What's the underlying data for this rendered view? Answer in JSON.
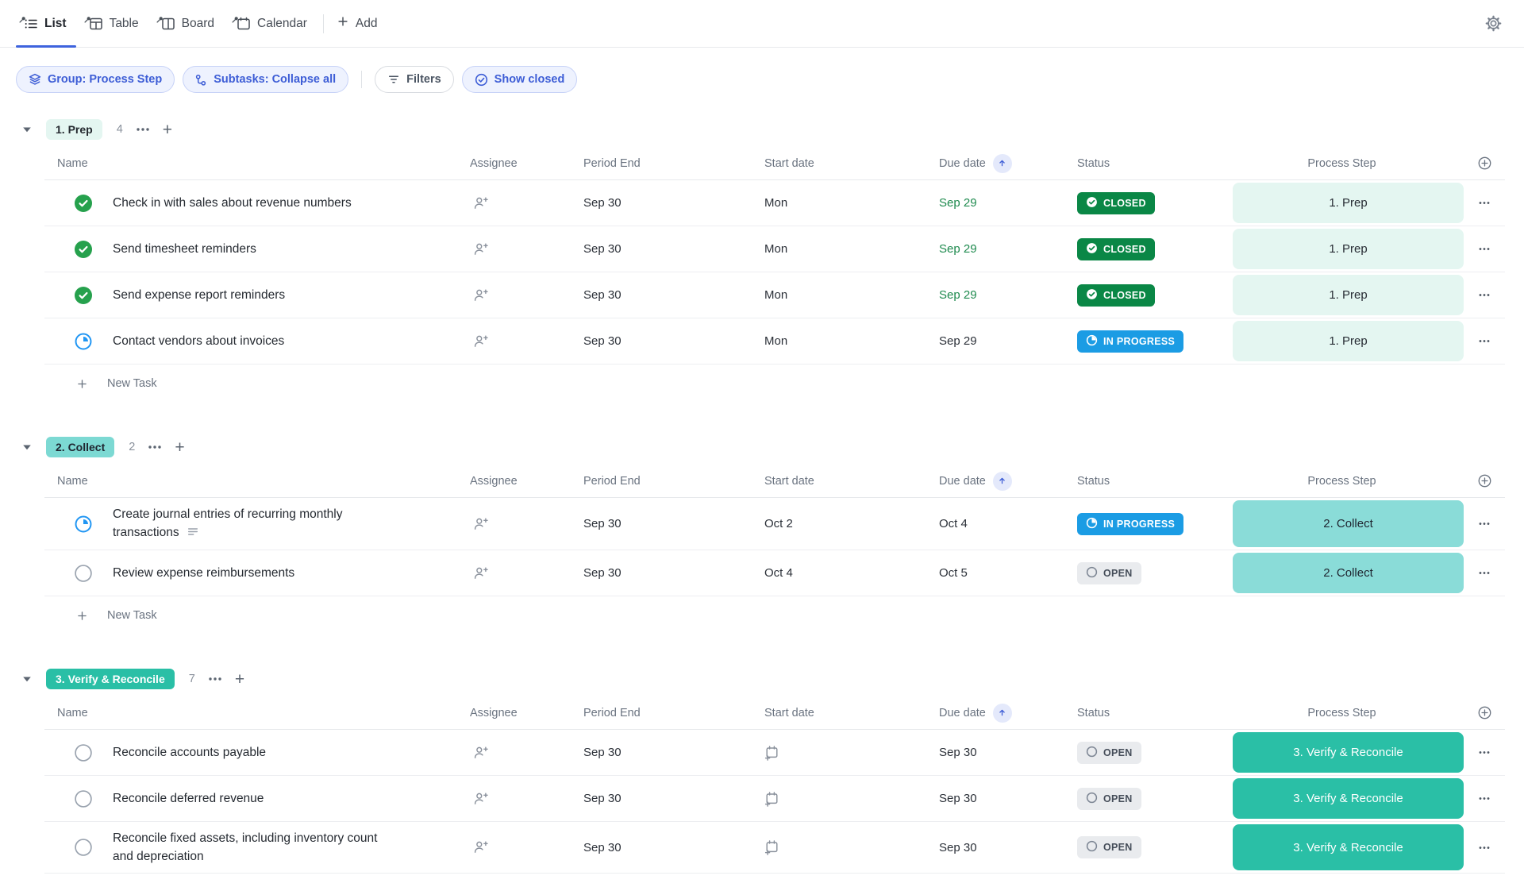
{
  "view_tabs": {
    "tabs": [
      {
        "label": "List",
        "icon": "list-view-icon",
        "active": true
      },
      {
        "label": "Table",
        "icon": "table-view-icon",
        "active": false
      },
      {
        "label": "Board",
        "icon": "board-view-icon",
        "active": false
      },
      {
        "label": "Calendar",
        "icon": "calendar-view-icon",
        "active": false
      }
    ],
    "add_label": "Add"
  },
  "filter_bar": {
    "chips": [
      {
        "label": "Group: Process Step",
        "icon": "layers-icon",
        "style": "active",
        "divider_after": false
      },
      {
        "label": "Subtasks: Collapse all",
        "icon": "subtask-icon",
        "style": "active",
        "divider_after": true
      },
      {
        "label": "Filters",
        "icon": "filter-icon",
        "style": "default",
        "divider_after": false
      },
      {
        "label": "Show closed",
        "icon": "check-circle-icon",
        "style": "active",
        "divider_after": false
      }
    ]
  },
  "table_columns": {
    "name": "Name",
    "assignee": "Assignee",
    "period_end": "Period End",
    "start": "Start date",
    "due": "Due date",
    "status": "Status",
    "step": "Process Step",
    "sort_column": "Due date",
    "sort_direction": "asc"
  },
  "new_task_label": "New Task",
  "colors": {
    "accent_blue": "#3e63dd",
    "chip_blue_text": "#3d5dd6",
    "chip_blue_bg": "#eef2fe",
    "chip_blue_border": "#c7d2f7",
    "chip_gray_text": "#4b5563",
    "chip_gray_border": "#d8dbe0",
    "due_green": "#1e8a4e",
    "sort_badge_bg": "#e4e9fb",
    "task_check_green": "#26a14d",
    "task_progress_blue": "#2196f3"
  },
  "statuses": {
    "closed": {
      "label": "CLOSED",
      "bg": "#0a8746",
      "fg": "#ffffff",
      "icon": "closed-check-badge-icon"
    },
    "in-progress": {
      "label": "IN PROGRESS",
      "bg": "#1b9ce4",
      "fg": "#ffffff",
      "icon": "progress-pie-badge-icon"
    },
    "open": {
      "label": "OPEN",
      "bg": "#e9ebee",
      "fg": "#454d59",
      "icon": "open-circle-badge-icon"
    }
  },
  "step_styles": {
    "1. Prep": {
      "bg": "#e4f6f1",
      "fg": "#262b33"
    },
    "2. Collect": {
      "bg": "#8adcd8",
      "fg": "#1f2530"
    },
    "3. Verify & Reconcile": {
      "bg": "#2abfa6",
      "fg": "#ffffff"
    }
  },
  "groups": [
    {
      "name": "1. Prep",
      "count": 4,
      "badge": {
        "bg": "#e4f6f1",
        "fg": "#24292f"
      },
      "has_new_task": true,
      "tasks": [
        {
          "name": "Check in with sales about revenue numbers",
          "state": "closed",
          "period_end": "Sep 30",
          "start": "Mon",
          "due": "Sep 29",
          "due_green": true,
          "status": "closed",
          "step": "1. Prep",
          "has_description": false
        },
        {
          "name": "Send timesheet reminders",
          "state": "closed",
          "period_end": "Sep 30",
          "start": "Mon",
          "due": "Sep 29",
          "due_green": true,
          "status": "closed",
          "step": "1. Prep",
          "has_description": false
        },
        {
          "name": "Send expense report reminders",
          "state": "closed",
          "period_end": "Sep 30",
          "start": "Mon",
          "due": "Sep 29",
          "due_green": true,
          "status": "closed",
          "step": "1. Prep",
          "has_description": false
        },
        {
          "name": "Contact vendors about invoices",
          "state": "in-progress",
          "period_end": "Sep 30",
          "start": "Mon",
          "due": "Sep 29",
          "due_green": false,
          "status": "in-progress",
          "step": "1. Prep",
          "has_description": false
        }
      ]
    },
    {
      "name": "2. Collect",
      "count": 2,
      "badge": {
        "bg": "#7cd9d3",
        "fg": "#1f2530"
      },
      "has_new_task": true,
      "tasks": [
        {
          "name": "Create journal entries of recurring monthly transactions",
          "state": "in-progress",
          "period_end": "Sep 30",
          "start": "Oct 2",
          "due": "Oct 4",
          "due_green": false,
          "status": "in-progress",
          "step": "2. Collect",
          "has_description": true
        },
        {
          "name": "Review expense reimbursements",
          "state": "open",
          "period_end": "Sep 30",
          "start": "Oct 4",
          "due": "Oct 5",
          "due_green": false,
          "status": "open",
          "step": "2. Collect",
          "has_description": false
        }
      ]
    },
    {
      "name": "3. Verify & Reconcile",
      "count": 7,
      "badge": {
        "bg": "#2abfa6",
        "fg": "#ffffff"
      },
      "has_new_task": false,
      "tasks": [
        {
          "name": "Reconcile accounts payable",
          "state": "open",
          "period_end": "Sep 30",
          "start": null,
          "due": "Sep 30",
          "due_green": false,
          "status": "open",
          "step": "3. Verify & Reconcile",
          "has_description": false
        },
        {
          "name": "Reconcile deferred revenue",
          "state": "open",
          "period_end": "Sep 30",
          "start": null,
          "due": "Sep 30",
          "due_green": false,
          "status": "open",
          "step": "3. Verify & Reconcile",
          "has_description": false
        },
        {
          "name": "Reconcile fixed assets, including inventory count and depreciation",
          "state": "open",
          "period_end": "Sep 30",
          "start": null,
          "due": "Sep 30",
          "due_green": false,
          "status": "open",
          "step": "3. Verify & Reconcile",
          "has_description": false
        }
      ]
    }
  ]
}
